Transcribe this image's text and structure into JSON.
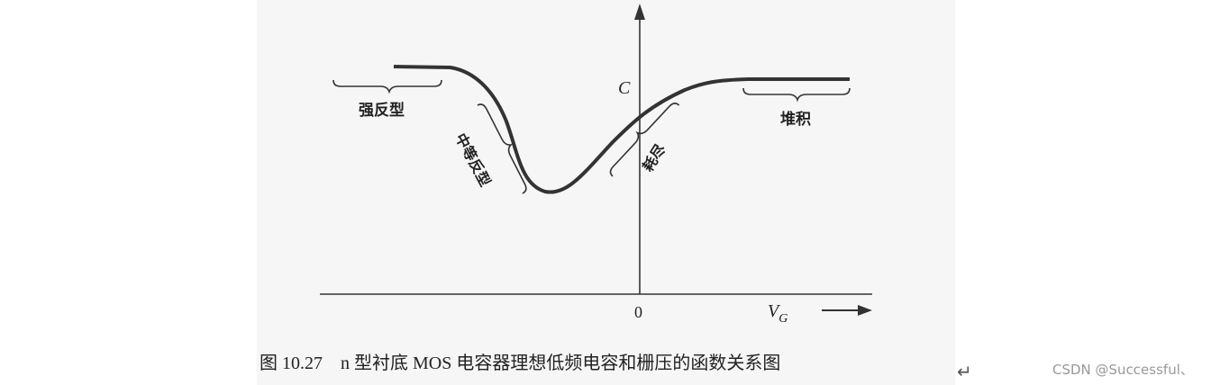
{
  "axes": {
    "y_label": "C",
    "x_label": {
      "main": "V",
      "sub": "G"
    },
    "origin": "0"
  },
  "regions": [
    "强反型",
    "中等反型",
    "耗尽",
    "堆积"
  ],
  "caption": "图 10.27　n 型衬底 MOS 电容器理想低频电容和栅压的函数关系图",
  "paragraph_mark": "↵",
  "watermark": "CSDN @Successful、"
}
